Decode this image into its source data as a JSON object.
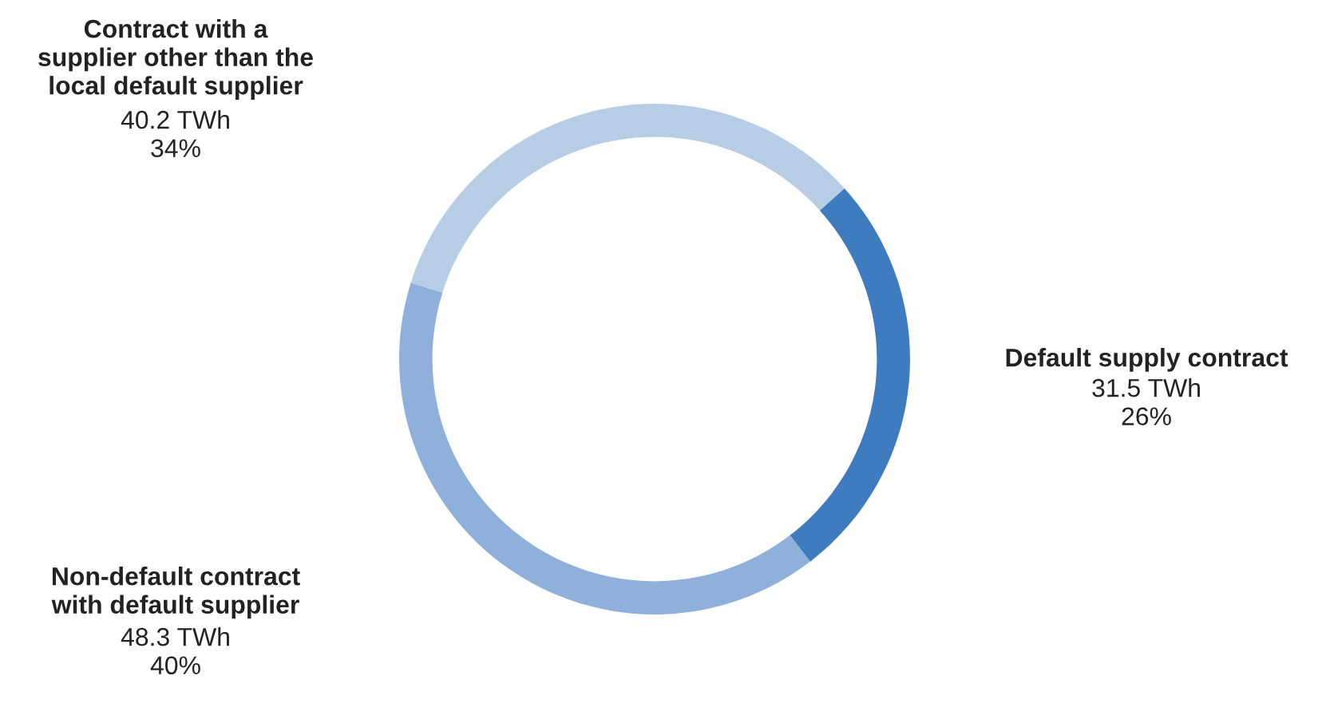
{
  "chart_data": {
    "type": "donut",
    "categories": [
      "Default supply contract",
      "Non-default contract with default supplier",
      "Contract with a supplier other than the local default supplier"
    ],
    "values": [
      31.5,
      48.3,
      40.2
    ],
    "value_labels": [
      "31.5 TWh\n26%",
      "48.3 TWh\n40%",
      "40.2 TWh\n34%"
    ],
    "colors": [
      "#3f7bbf",
      "#8eb0da",
      "#b7cde6"
    ],
    "legend": false
  }
}
